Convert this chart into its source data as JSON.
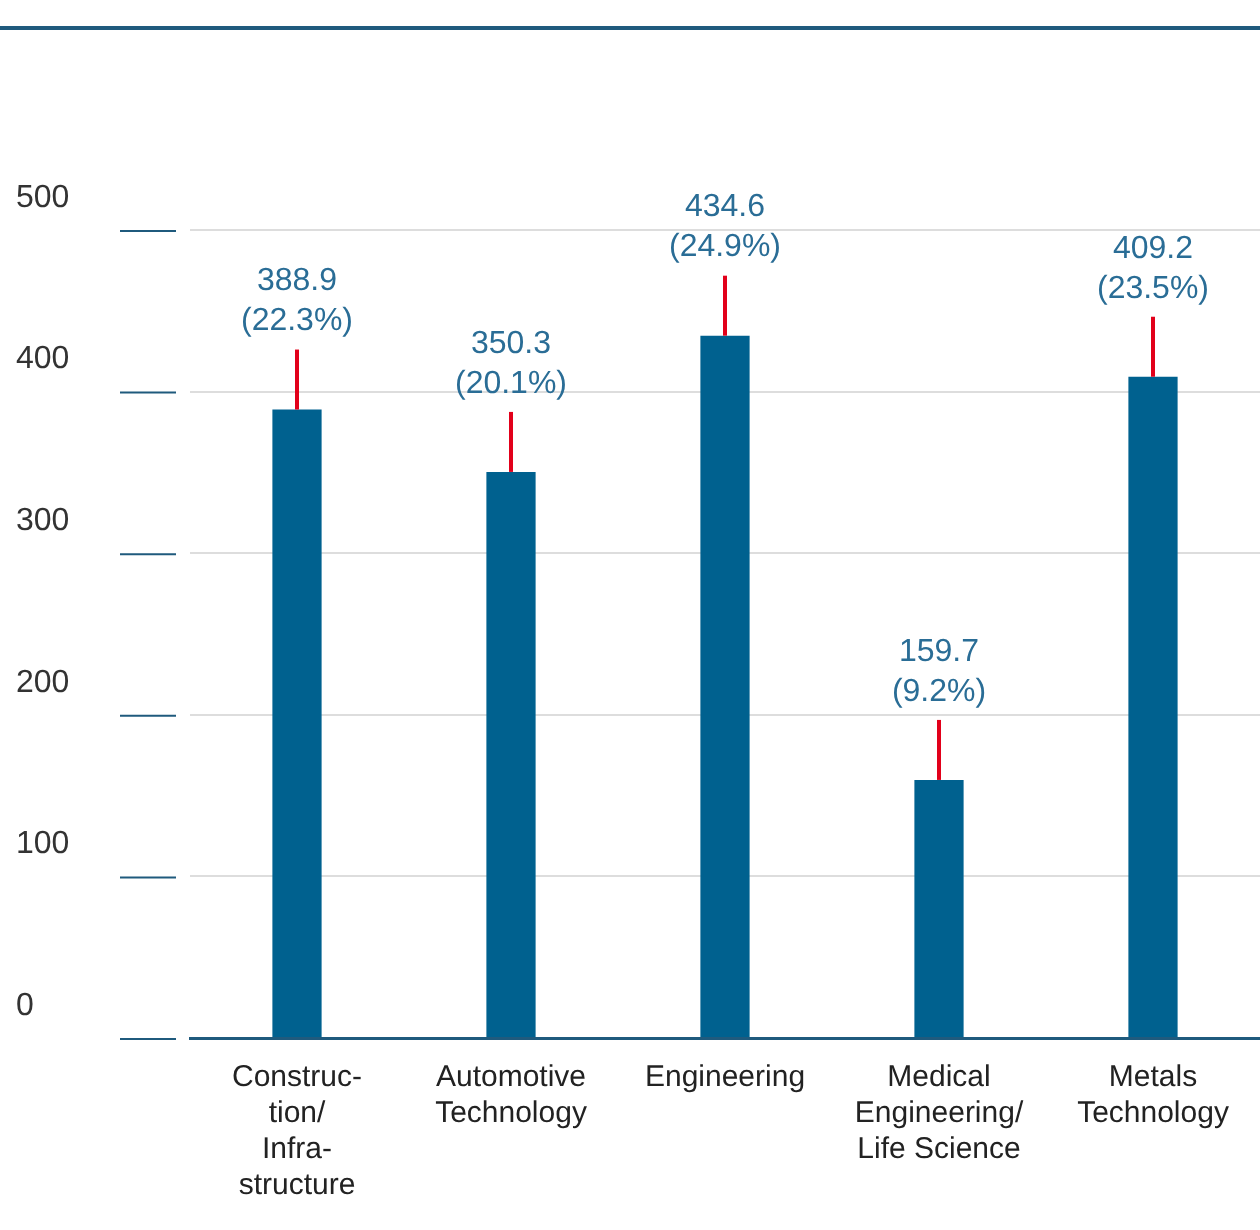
{
  "chart_data": {
    "type": "bar",
    "categories": [
      "Construc-\ntion/\nInfra-\nstructure",
      "Automotive\nTechnology",
      "Engineering",
      "Medical\nEngineering/\nLife Science",
      "Metals\nTechnology"
    ],
    "values": [
      388.9,
      350.3,
      434.6,
      159.7,
      409.2
    ],
    "value_labels": [
      "388.9\n(22.3%)",
      "350.3\n(20.1%)",
      "434.6\n(24.9%)",
      "159.7\n(9.2%)",
      "409.2\n(23.5%)"
    ],
    "color": "#00618f",
    "ylim": [
      0,
      500
    ],
    "yticks": [
      0,
      100,
      200,
      300,
      400,
      500
    ],
    "grid": "y",
    "legend": false
  }
}
